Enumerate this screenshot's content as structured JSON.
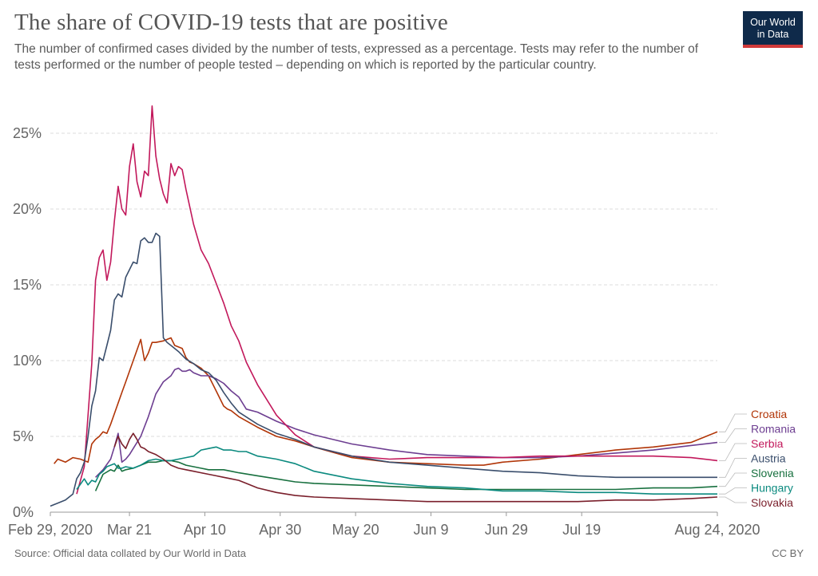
{
  "header": {
    "title": "The share of COVID-19 tests that are positive",
    "subtitle": "The number of confirmed cases divided by the number of tests, expressed as a percentage. Tests may refer to the number of tests performed or the number of people tested – depending on which is reported by the particular country."
  },
  "logo": {
    "line1": "Our World",
    "line2": "in Data"
  },
  "footer": {
    "source": "Source: Official data collated by Our World in Data",
    "license": "CC BY"
  },
  "chart_data": {
    "type": "line",
    "title": "The share of COVID-19 tests that are positive",
    "xlabel": "",
    "ylabel": "",
    "x_unit": "days since Feb 29, 2020",
    "xlim": [
      0,
      177
    ],
    "ylim": [
      0,
      27
    ],
    "y_ticks": [
      0,
      5,
      10,
      15,
      20,
      25
    ],
    "y_tick_labels": [
      "0%",
      "5%",
      "10%",
      "15%",
      "20%",
      "25%"
    ],
    "x_ticks": [
      0,
      21,
      41,
      61,
      81,
      101,
      121,
      141,
      177
    ],
    "x_tick_labels": [
      "Feb 29, 2020",
      "Mar 21",
      "Apr 10",
      "Apr 30",
      "May 20",
      "Jun 9",
      "Jun 29",
      "Jul 19",
      "Aug 24, 2020"
    ],
    "grid": "horizontal dashed",
    "legend": "right end labels",
    "series": [
      {
        "name": "Croatia",
        "color": "#b13507",
        "x": [
          1,
          2,
          4,
          6,
          8,
          10,
          11,
          12,
          13,
          14,
          15,
          16,
          17,
          18,
          19,
          20,
          22,
          24,
          25,
          26,
          27,
          28,
          30,
          32,
          33,
          35,
          36,
          37,
          38,
          40,
          42,
          44,
          46,
          47,
          48,
          50,
          55,
          60,
          65,
          70,
          80,
          90,
          100,
          110,
          115,
          120,
          130,
          140,
          150,
          160,
          170,
          177
        ],
        "y": [
          3.2,
          3.5,
          3.3,
          3.6,
          3.5,
          3.3,
          4.5,
          4.8,
          5.0,
          5.3,
          5.2,
          5.8,
          6.5,
          7.2,
          7.9,
          8.6,
          10.0,
          11.4,
          10.0,
          10.5,
          11.2,
          11.2,
          11.3,
          11.5,
          11.0,
          10.8,
          10.2,
          9.9,
          9.8,
          9.5,
          9.0,
          8.0,
          7.0,
          6.8,
          6.7,
          6.3,
          5.6,
          5.0,
          4.7,
          4.3,
          3.6,
          3.3,
          3.2,
          3.1,
          3.1,
          3.3,
          3.5,
          3.8,
          4.1,
          4.3,
          4.6,
          5.3
        ]
      },
      {
        "name": "Romania",
        "color": "#6d3e91",
        "x": [
          12,
          14,
          16,
          17,
          18,
          19,
          20,
          21,
          22,
          24,
          26,
          28,
          30,
          32,
          33,
          34,
          35,
          36,
          37,
          38,
          40,
          42,
          44,
          46,
          48,
          50,
          52,
          55,
          60,
          65,
          70,
          80,
          90,
          100,
          110,
          120,
          130,
          140,
          150,
          160,
          170,
          177
        ],
        "y": [
          2.3,
          2.8,
          3.5,
          4.3,
          5.2,
          3.3,
          3.5,
          3.8,
          4.2,
          5.0,
          6.3,
          7.8,
          8.6,
          9.0,
          9.4,
          9.5,
          9.3,
          9.3,
          9.4,
          9.2,
          9.0,
          9.0,
          8.8,
          8.5,
          8.0,
          7.6,
          6.8,
          6.6,
          6.0,
          5.5,
          5.1,
          4.5,
          4.1,
          3.8,
          3.7,
          3.6,
          3.6,
          3.7,
          3.9,
          4.1,
          4.4,
          4.6
        ]
      },
      {
        "name": "Serbia",
        "color": "#c2185b",
        "x": [
          7,
          9,
          11,
          12,
          13,
          14,
          15,
          16,
          17,
          18,
          19,
          20,
          21,
          22,
          23,
          24,
          25,
          26,
          27,
          28,
          29,
          30,
          31,
          32,
          33,
          34,
          35,
          36,
          38,
          40,
          42,
          44,
          46,
          48,
          50,
          52,
          55,
          60,
          65,
          70,
          80,
          90,
          100,
          110,
          120,
          130,
          140,
          150,
          160,
          170,
          177
        ],
        "y": [
          1.2,
          3.0,
          9.8,
          15.3,
          16.8,
          17.3,
          15.3,
          16.5,
          19.2,
          21.5,
          20.0,
          19.6,
          22.8,
          24.3,
          21.8,
          20.8,
          22.5,
          22.2,
          26.8,
          23.5,
          22.0,
          21.0,
          20.4,
          23.0,
          22.2,
          22.8,
          22.6,
          21.3,
          19.0,
          17.3,
          16.4,
          15.1,
          13.8,
          12.3,
          11.3,
          9.9,
          8.4,
          6.4,
          5.1,
          4.3,
          3.7,
          3.5,
          3.6,
          3.6,
          3.6,
          3.7,
          3.7,
          3.7,
          3.7,
          3.6,
          3.4
        ]
      },
      {
        "name": "Austria",
        "color": "#3a4e6c",
        "x": [
          0,
          2,
          4,
          6,
          7,
          8,
          9,
          10,
          11,
          12,
          13,
          14,
          15,
          16,
          17,
          18,
          19,
          20,
          21,
          22,
          23,
          24,
          25,
          26,
          27,
          28,
          29,
          30,
          31,
          32,
          34,
          36,
          38,
          40,
          42,
          44,
          46,
          48,
          50,
          55,
          60,
          65,
          70,
          80,
          90,
          100,
          110,
          120,
          130,
          140,
          150,
          160,
          170,
          177
        ],
        "y": [
          0.4,
          0.6,
          0.8,
          1.2,
          2.2,
          2.6,
          3.3,
          5.0,
          7.0,
          8.0,
          10.2,
          10.0,
          11.0,
          12.0,
          14.0,
          14.4,
          14.2,
          15.5,
          16.0,
          16.5,
          16.4,
          17.9,
          18.1,
          17.8,
          17.8,
          18.4,
          18.2,
          11.5,
          11.2,
          11.0,
          10.6,
          10.1,
          9.8,
          9.4,
          9.2,
          8.7,
          7.9,
          7.2,
          6.6,
          5.8,
          5.2,
          4.8,
          4.3,
          3.7,
          3.3,
          3.1,
          2.9,
          2.7,
          2.6,
          2.4,
          2.3,
          2.3,
          2.3,
          2.3
        ]
      },
      {
        "name": "Slovenia",
        "color": "#18703f",
        "x": [
          12,
          14,
          16,
          17,
          18,
          19,
          20,
          22,
          24,
          26,
          28,
          30,
          32,
          34,
          36,
          38,
          40,
          42,
          44,
          46,
          48,
          50,
          55,
          60,
          65,
          70,
          80,
          90,
          100,
          110,
          120,
          130,
          140,
          150,
          160,
          170,
          177
        ],
        "y": [
          1.4,
          2.5,
          2.8,
          2.7,
          3.1,
          2.7,
          2.8,
          2.9,
          3.1,
          3.3,
          3.3,
          3.4,
          3.4,
          3.3,
          3.1,
          3.0,
          2.9,
          2.8,
          2.8,
          2.8,
          2.7,
          2.6,
          2.4,
          2.2,
          2.0,
          1.9,
          1.8,
          1.7,
          1.6,
          1.5,
          1.5,
          1.5,
          1.5,
          1.5,
          1.6,
          1.6,
          1.7
        ]
      },
      {
        "name": "Hungary",
        "color": "#0b8a7f",
        "x": [
          7,
          9,
          10,
          11,
          12,
          13,
          14,
          15,
          16,
          17,
          18,
          19,
          20,
          22,
          24,
          26,
          28,
          30,
          32,
          34,
          36,
          38,
          40,
          42,
          44,
          46,
          48,
          50,
          52,
          55,
          60,
          65,
          70,
          80,
          90,
          100,
          110,
          120,
          130,
          140,
          150,
          160,
          170,
          177
        ],
        "y": [
          1.5,
          2.2,
          1.8,
          2.1,
          2.0,
          2.5,
          2.7,
          3.0,
          3.1,
          3.2,
          2.9,
          2.9,
          3.0,
          2.9,
          3.1,
          3.4,
          3.5,
          3.4,
          3.4,
          3.5,
          3.6,
          3.7,
          4.1,
          4.2,
          4.3,
          4.1,
          4.1,
          4.0,
          4.0,
          3.7,
          3.5,
          3.2,
          2.7,
          2.2,
          1.9,
          1.7,
          1.6,
          1.4,
          1.4,
          1.3,
          1.3,
          1.2,
          1.2,
          1.2
        ]
      },
      {
        "name": "Slovakia",
        "color": "#7a1f2b",
        "x": [
          17,
          18,
          19,
          20,
          21,
          22,
          23,
          24,
          25,
          26,
          28,
          30,
          32,
          34,
          36,
          38,
          40,
          42,
          44,
          46,
          48,
          50,
          52,
          55,
          60,
          65,
          70,
          80,
          90,
          100,
          110,
          120,
          130,
          140,
          150,
          160,
          170,
          177
        ],
        "y": [
          4.3,
          5.0,
          4.5,
          4.2,
          4.8,
          5.2,
          4.8,
          4.3,
          4.2,
          4.0,
          3.8,
          3.5,
          3.1,
          2.9,
          2.8,
          2.7,
          2.6,
          2.5,
          2.4,
          2.3,
          2.2,
          2.1,
          1.9,
          1.6,
          1.3,
          1.1,
          1.0,
          0.9,
          0.8,
          0.7,
          0.7,
          0.7,
          0.7,
          0.7,
          0.8,
          0.8,
          0.9,
          1.0
        ]
      }
    ]
  }
}
